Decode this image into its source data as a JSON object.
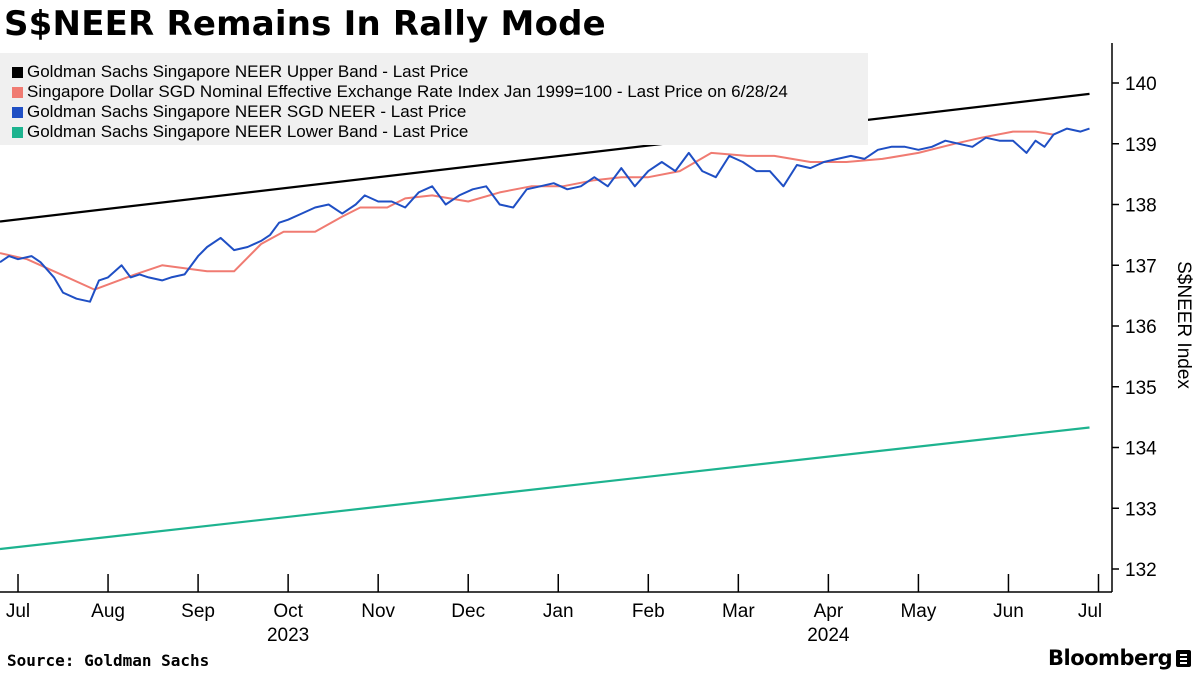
{
  "chart_data": {
    "type": "line",
    "title": "S$NEER Remains In Rally Mode",
    "ylabel": "S$NEER Index",
    "xlabel": "",
    "ylim": [
      131.6,
      140.4
    ],
    "yticks": [
      132,
      133,
      134,
      135,
      136,
      137,
      138,
      139,
      140
    ],
    "xrange": [
      0,
      12.35
    ],
    "xticks": [
      {
        "label": "Jul",
        "x": 0.2
      },
      {
        "label": "Aug",
        "x": 1.2
      },
      {
        "label": "Sep",
        "x": 2.2
      },
      {
        "label": "Oct",
        "x": 3.2
      },
      {
        "label": "Nov",
        "x": 4.2
      },
      {
        "label": "Dec",
        "x": 5.2
      },
      {
        "label": "Jan",
        "x": 6.2
      },
      {
        "label": "Feb",
        "x": 7.2
      },
      {
        "label": "Mar",
        "x": 8.2
      },
      {
        "label": "Apr",
        "x": 9.2
      },
      {
        "label": "May",
        "x": 10.2
      },
      {
        "label": "Jun",
        "x": 11.2
      },
      {
        "label": "Jul",
        "x": 12.2
      }
    ],
    "year_labels": [
      {
        "label": "2023",
        "x": 3.2
      },
      {
        "label": "2024",
        "x": 9.2
      }
    ],
    "legend_placement": "top-left",
    "series": [
      {
        "name": "Goldman Sachs Singapore NEER Upper Band - Last Price",
        "color": "#000000",
        "x": [
          0,
          12.1
        ],
        "values": [
          137.72,
          139.82
        ]
      },
      {
        "name": "Singapore Dollar SGD Nominal Effective Exchange Rate Index Jan 1999=100 - Last Price on 6/28/24",
        "color": "#f07b72",
        "x": [
          0,
          0.3,
          0.6,
          1.05,
          1.5,
          1.8,
          2.3,
          2.6,
          2.9,
          3.15,
          3.5,
          3.8,
          4.0,
          4.3,
          4.5,
          4.8,
          5.2,
          5.55,
          5.9,
          6.25,
          6.6,
          6.9,
          7.2,
          7.55,
          7.9,
          8.3,
          8.6,
          9.0,
          9.4,
          9.8,
          10.2,
          10.6,
          10.9,
          11.25,
          11.5,
          11.7
        ],
        "values": [
          137.2,
          137.1,
          136.9,
          136.6,
          136.85,
          137.0,
          136.9,
          136.9,
          137.35,
          137.55,
          137.55,
          137.8,
          137.95,
          137.95,
          138.1,
          138.15,
          138.05,
          138.2,
          138.3,
          138.3,
          138.4,
          138.45,
          138.45,
          138.55,
          138.85,
          138.8,
          138.8,
          138.7,
          138.7,
          138.75,
          138.85,
          139.0,
          139.1,
          139.2,
          139.2,
          139.15
        ]
      },
      {
        "name": "Goldman Sachs Singapore NEER SGD NEER - Last Price",
        "color": "#1f4fc4",
        "x": [
          0,
          0.1,
          0.2,
          0.35,
          0.45,
          0.6,
          0.7,
          0.85,
          1.0,
          1.1,
          1.2,
          1.35,
          1.45,
          1.55,
          1.65,
          1.8,
          1.9,
          2.05,
          2.2,
          2.3,
          2.45,
          2.6,
          2.75,
          2.9,
          3.0,
          3.1,
          3.2,
          3.35,
          3.5,
          3.65,
          3.8,
          3.95,
          4.05,
          4.2,
          4.35,
          4.5,
          4.65,
          4.8,
          4.95,
          5.1,
          5.25,
          5.4,
          5.55,
          5.7,
          5.85,
          6.0,
          6.15,
          6.3,
          6.45,
          6.6,
          6.75,
          6.9,
          7.05,
          7.2,
          7.35,
          7.5,
          7.65,
          7.8,
          7.95,
          8.1,
          8.25,
          8.4,
          8.55,
          8.7,
          8.85,
          9.0,
          9.15,
          9.3,
          9.45,
          9.6,
          9.75,
          9.9,
          10.05,
          10.2,
          10.35,
          10.5,
          10.65,
          10.8,
          10.95,
          11.1,
          11.25,
          11.4,
          11.5,
          11.6,
          11.7,
          11.85,
          12.0,
          12.1
        ],
        "values": [
          137.05,
          137.15,
          137.1,
          137.15,
          137.05,
          136.8,
          136.55,
          136.45,
          136.4,
          136.75,
          136.8,
          137.0,
          136.8,
          136.85,
          136.8,
          136.75,
          136.8,
          136.85,
          137.15,
          137.3,
          137.45,
          137.25,
          137.3,
          137.4,
          137.5,
          137.7,
          137.75,
          137.85,
          137.95,
          138.0,
          137.85,
          138.0,
          138.15,
          138.05,
          138.05,
          137.95,
          138.2,
          138.3,
          138.0,
          138.15,
          138.25,
          138.3,
          138.0,
          137.95,
          138.25,
          138.3,
          138.35,
          138.25,
          138.3,
          138.45,
          138.3,
          138.6,
          138.3,
          138.55,
          138.7,
          138.55,
          138.85,
          138.55,
          138.45,
          138.8,
          138.7,
          138.55,
          138.55,
          138.3,
          138.65,
          138.6,
          138.7,
          138.75,
          138.8,
          138.75,
          138.9,
          138.95,
          138.95,
          138.9,
          138.95,
          139.05,
          139.0,
          138.95,
          139.1,
          139.05,
          139.05,
          138.85,
          139.05,
          138.95,
          139.15,
          139.25,
          139.2,
          139.25
        ]
      },
      {
        "name": "Goldman Sachs Singapore NEER Lower Band - Last Price",
        "color": "#1db38f",
        "x": [
          0,
          12.1
        ],
        "values": [
          132.33,
          134.33
        ]
      }
    ],
    "source": "Source: Goldman Sachs",
    "brand": "Bloomberg"
  }
}
